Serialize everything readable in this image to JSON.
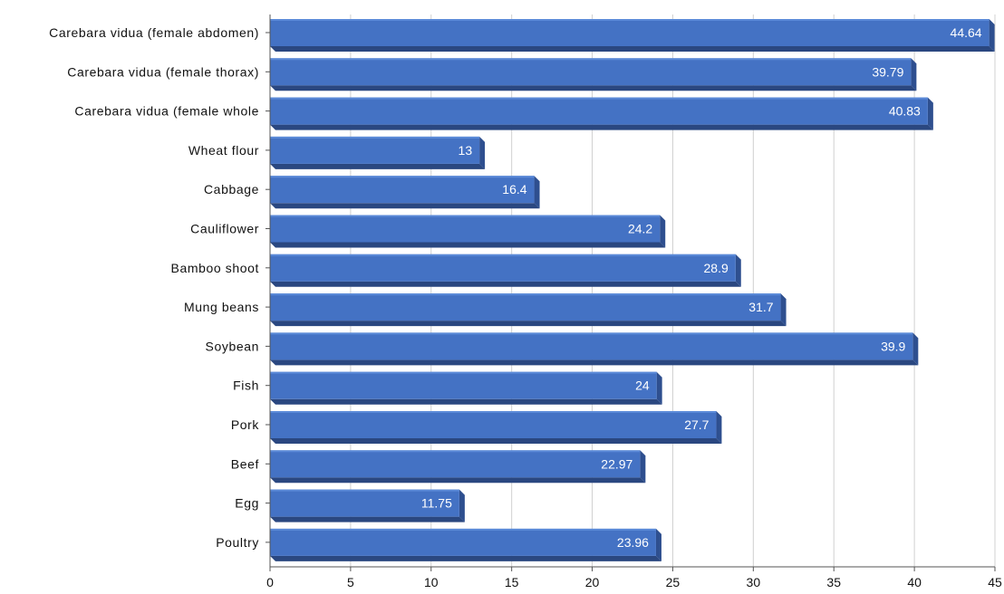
{
  "chart_data": {
    "type": "bar",
    "orientation": "horizontal",
    "categories": [
      "Carebara vidua (female abdomen)",
      "Carebara vidua (female thorax)",
      "Carebara vidua (female whole",
      "Wheat flour",
      "Cabbage",
      "Cauliflower",
      "Bamboo shoot",
      "Mung beans",
      "Soybean",
      "Fish",
      "Pork",
      "Beef",
      "Egg",
      "Poultry"
    ],
    "values": [
      44.64,
      39.79,
      40.83,
      13,
      16.4,
      24.2,
      28.9,
      31.7,
      39.9,
      24,
      27.7,
      22.97,
      11.75,
      23.96
    ],
    "value_labels": [
      "44.64",
      "39.79",
      "40.83",
      "13",
      "16.4",
      "24.2",
      "28.9",
      "31.7",
      "39.9",
      "24",
      "27.7",
      "22.97",
      "11.75",
      "23.96"
    ],
    "title": "",
    "xlabel": "",
    "ylabel": "",
    "xlim": [
      0,
      45
    ],
    "ticks": [
      "0",
      "5",
      "10",
      "15",
      "20",
      "25",
      "30",
      "35",
      "40",
      "45"
    ],
    "grid": true,
    "legend": "none",
    "colors": {
      "bar_front": "#4472c4",
      "bar_top": "#5b8ad8",
      "bar_side": "#2e4f8f",
      "bar_bottom": "#2a4780",
      "grid": "#d0d0d0",
      "axis": "#555555"
    }
  }
}
